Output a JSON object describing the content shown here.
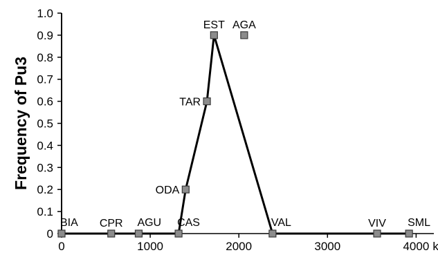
{
  "chart_data": {
    "type": "line",
    "title": "",
    "xlabel": "",
    "ylabel": "Frequency of Pu3",
    "x_unit": "km",
    "xlim": [
      0,
      4200
    ],
    "ylim": [
      0,
      1.0
    ],
    "x_ticks": [
      {
        "value": 0,
        "label": "0"
      },
      {
        "value": 1000,
        "label": "1000"
      },
      {
        "value": 2000,
        "label": "2000"
      },
      {
        "value": 3000,
        "label": "3000"
      },
      {
        "value": 4000,
        "label": "4000"
      }
    ],
    "y_ticks": [
      {
        "value": 0,
        "label": "0"
      },
      {
        "value": 0.1,
        "label": "0.1"
      },
      {
        "value": 0.2,
        "label": "0.2"
      },
      {
        "value": 0.3,
        "label": "0.3"
      },
      {
        "value": 0.4,
        "label": "0.4"
      },
      {
        "value": 0.5,
        "label": "0.5"
      },
      {
        "value": 0.6,
        "label": "0.6"
      },
      {
        "value": 0.7,
        "label": "0.7"
      },
      {
        "value": 0.8,
        "label": "0.8"
      },
      {
        "value": 0.9,
        "label": "0.9"
      },
      {
        "value": 1.0,
        "label": "1.0"
      }
    ],
    "grid": false,
    "legend": "none",
    "line_color": "#000000",
    "marker_color": "#8c8c8c",
    "points": [
      {
        "label": "BIA",
        "x": 0,
        "y": 0,
        "on_line": true,
        "label_pos": "above-right"
      },
      {
        "label": "CPR",
        "x": 560,
        "y": 0,
        "on_line": true,
        "label_pos": "above"
      },
      {
        "label": "AGU",
        "x": 870,
        "y": 0,
        "on_line": true,
        "label_pos": "above-right"
      },
      {
        "label": "CAS",
        "x": 1320,
        "y": 0,
        "on_line": true,
        "label_pos": "above-right"
      },
      {
        "label": "ODA",
        "x": 1400,
        "y": 0.2,
        "on_line": true,
        "label_pos": "left"
      },
      {
        "label": "TAR",
        "x": 1640,
        "y": 0.6,
        "on_line": true,
        "label_pos": "left"
      },
      {
        "label": "EST",
        "x": 1720,
        "y": 0.9,
        "on_line": true,
        "label_pos": "above"
      },
      {
        "label": "AGA",
        "x": 2060,
        "y": 0.9,
        "on_line": false,
        "label_pos": "above"
      },
      {
        "label": "VAL",
        "x": 2380,
        "y": 0,
        "on_line": true,
        "label_pos": "above-right"
      },
      {
        "label": "VIV",
        "x": 3560,
        "y": 0,
        "on_line": true,
        "label_pos": "above"
      },
      {
        "label": "SML",
        "x": 3920,
        "y": 0,
        "on_line": true,
        "label_pos": "above-right"
      }
    ]
  }
}
